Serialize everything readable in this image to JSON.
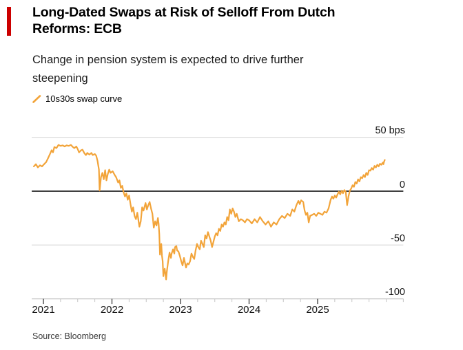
{
  "header": {
    "title": "Long-Dated Swaps at Risk of Selloff From Dutch Reforms: ECB",
    "subtitle": "Change in pension system is expected to drive further steepening"
  },
  "legend": {
    "items": [
      {
        "label": "10s30s swap curve",
        "marker": "diagonal-line-swatch",
        "color": "#F2A43A"
      }
    ]
  },
  "source": "Source: Bloomberg",
  "colors": {
    "accent_red": "#cc0000",
    "line_orange": "#F2A43A",
    "grid_gray": "#d0d0d0",
    "zero_line": "#000000",
    "axis_gray": "#c4c4c4",
    "tick_major": "#3a3a3a"
  },
  "chart_data": {
    "type": "line",
    "title": "Long-Dated Swaps at Risk of Selloff From Dutch Reforms: ECB",
    "subtitle": "Change in pension system is expected to drive further steepening",
    "xlabel": "",
    "ylabel": "bps",
    "legend_position": "top-left",
    "grid": "horizontal",
    "xlim": [
      2020.83,
      2026.25
    ],
    "ylim": [
      -100,
      50
    ],
    "x_ticks_major": [
      2021,
      2022,
      2023,
      2024,
      2025
    ],
    "x_tick_labels": [
      "2021",
      "2022",
      "2023",
      "2024",
      "2025"
    ],
    "x_minor_tick_interval": 0.25,
    "y_ticks": [
      50,
      0,
      -50,
      -100
    ],
    "y_tick_labels": [
      "50 bps",
      "0",
      "-50",
      "-100"
    ],
    "series": [
      {
        "name": "10s30s swap curve",
        "color": "#F2A43A",
        "units": "bps",
        "points": [
          [
            2020.86,
            23
          ],
          [
            2020.89,
            25
          ],
          [
            2020.92,
            22
          ],
          [
            2020.95,
            24
          ],
          [
            2020.98,
            23
          ],
          [
            2021.01,
            25
          ],
          [
            2021.04,
            27
          ],
          [
            2021.07,
            31
          ],
          [
            2021.1,
            35
          ],
          [
            2021.12,
            38
          ],
          [
            2021.14,
            36
          ],
          [
            2021.16,
            41
          ],
          [
            2021.19,
            40
          ],
          [
            2021.22,
            43
          ],
          [
            2021.25,
            42
          ],
          [
            2021.28,
            42.5
          ],
          [
            2021.31,
            41.5
          ],
          [
            2021.34,
            42.5
          ],
          [
            2021.37,
            42
          ],
          [
            2021.4,
            43
          ],
          [
            2021.43,
            41
          ],
          [
            2021.45,
            40
          ],
          [
            2021.48,
            41.5
          ],
          [
            2021.5,
            39
          ],
          [
            2021.52,
            36
          ],
          [
            2021.55,
            38
          ],
          [
            2021.57,
            38.5
          ],
          [
            2021.6,
            35
          ],
          [
            2021.62,
            33.5
          ],
          [
            2021.64,
            35.5
          ],
          [
            2021.67,
            34
          ],
          [
            2021.7,
            35.5
          ],
          [
            2021.72,
            33.5
          ],
          [
            2021.75,
            34.5
          ],
          [
            2021.77,
            33
          ],
          [
            2021.79,
            28
          ],
          [
            2021.81,
            20
          ],
          [
            2021.82,
            0.5
          ],
          [
            2021.84,
            13
          ],
          [
            2021.86,
            17
          ],
          [
            2021.88,
            11
          ],
          [
            2021.9,
            19.5
          ],
          [
            2021.92,
            10
          ],
          [
            2021.94,
            16
          ],
          [
            2021.96,
            20
          ],
          [
            2021.98,
            17
          ],
          [
            2022.01,
            18.5
          ],
          [
            2022.04,
            15
          ],
          [
            2022.06,
            13
          ],
          [
            2022.09,
            8
          ],
          [
            2022.11,
            10
          ],
          [
            2022.13,
            3
          ],
          [
            2022.15,
            5
          ],
          [
            2022.17,
            -1
          ],
          [
            2022.19,
            -5
          ],
          [
            2022.21,
            -2
          ],
          [
            2022.23,
            -8
          ],
          [
            2022.25,
            -4
          ],
          [
            2022.27,
            -12
          ],
          [
            2022.29,
            -19
          ],
          [
            2022.31,
            -15
          ],
          [
            2022.33,
            -23
          ],
          [
            2022.35,
            -26
          ],
          [
            2022.37,
            -20
          ],
          [
            2022.4,
            -33
          ],
          [
            2022.42,
            -28
          ],
          [
            2022.44,
            -15
          ],
          [
            2022.46,
            -18
          ],
          [
            2022.49,
            -11
          ],
          [
            2022.51,
            -17
          ],
          [
            2022.53,
            -13
          ],
          [
            2022.55,
            -10
          ],
          [
            2022.57,
            -16
          ],
          [
            2022.59,
            -21
          ],
          [
            2022.61,
            -34
          ],
          [
            2022.63,
            -28
          ],
          [
            2022.65,
            -32
          ],
          [
            2022.67,
            -25
          ],
          [
            2022.68,
            -30
          ],
          [
            2022.69,
            -40
          ],
          [
            2022.7,
            -59
          ],
          [
            2022.71,
            -52
          ],
          [
            2022.72,
            -49
          ],
          [
            2022.73,
            -60
          ],
          [
            2022.74,
            -65
          ],
          [
            2022.75,
            -79
          ],
          [
            2022.76,
            -74
          ],
          [
            2022.77,
            -72
          ],
          [
            2022.78,
            -77
          ],
          [
            2022.79,
            -82
          ],
          [
            2022.8,
            -75
          ],
          [
            2022.82,
            -65
          ],
          [
            2022.84,
            -57
          ],
          [
            2022.86,
            -62
          ],
          [
            2022.87,
            -58
          ],
          [
            2022.89,
            -54
          ],
          [
            2022.91,
            -58
          ],
          [
            2022.92,
            -52
          ],
          [
            2022.94,
            -51
          ],
          [
            2022.95,
            -55
          ],
          [
            2022.97,
            -56
          ],
          [
            2022.99,
            -60
          ],
          [
            2023.01,
            -65
          ],
          [
            2023.03,
            -69
          ],
          [
            2023.05,
            -62
          ],
          [
            2023.08,
            -71
          ],
          [
            2023.1,
            -67
          ],
          [
            2023.12,
            -68
          ],
          [
            2023.14,
            -65
          ],
          [
            2023.16,
            -58
          ],
          [
            2023.18,
            -61
          ],
          [
            2023.2,
            -63
          ],
          [
            2023.22,
            -55
          ],
          [
            2023.24,
            -49
          ],
          [
            2023.26,
            -52
          ],
          [
            2023.28,
            -54
          ],
          [
            2023.3,
            -46
          ],
          [
            2023.32,
            -49
          ],
          [
            2023.34,
            -52
          ],
          [
            2023.36,
            -41
          ],
          [
            2023.38,
            -44
          ],
          [
            2023.4,
            -38
          ],
          [
            2023.42,
            -42
          ],
          [
            2023.44,
            -46
          ],
          [
            2023.46,
            -52
          ],
          [
            2023.48,
            -47
          ],
          [
            2023.5,
            -42
          ],
          [
            2023.52,
            -39
          ],
          [
            2023.54,
            -41
          ],
          [
            2023.56,
            -35
          ],
          [
            2023.58,
            -37
          ],
          [
            2023.6,
            -31
          ],
          [
            2023.62,
            -33
          ],
          [
            2023.64,
            -29
          ],
          [
            2023.66,
            -31
          ],
          [
            2023.68,
            -24
          ],
          [
            2023.7,
            -27
          ],
          [
            2023.72,
            -17
          ],
          [
            2023.74,
            -21
          ],
          [
            2023.76,
            -16
          ],
          [
            2023.78,
            -19
          ],
          [
            2023.8,
            -24
          ],
          [
            2023.82,
            -21
          ],
          [
            2023.85,
            -28
          ],
          [
            2023.88,
            -26
          ],
          [
            2023.91,
            -27
          ],
          [
            2023.94,
            -29
          ],
          [
            2023.97,
            -26
          ],
          [
            2024.0,
            -27
          ],
          [
            2024.04,
            -30
          ],
          [
            2024.08,
            -26
          ],
          [
            2024.12,
            -29
          ],
          [
            2024.16,
            -24
          ],
          [
            2024.2,
            -28
          ],
          [
            2024.24,
            -31
          ],
          [
            2024.28,
            -28
          ],
          [
            2024.32,
            -33
          ],
          [
            2024.36,
            -29
          ],
          [
            2024.4,
            -31
          ],
          [
            2024.44,
            -26
          ],
          [
            2024.48,
            -23
          ],
          [
            2024.52,
            -25
          ],
          [
            2024.56,
            -21
          ],
          [
            2024.6,
            -23
          ],
          [
            2024.63,
            -17
          ],
          [
            2024.66,
            -19
          ],
          [
            2024.69,
            -13
          ],
          [
            2024.72,
            -9
          ],
          [
            2024.74,
            -12
          ],
          [
            2024.76,
            -8.5
          ],
          [
            2024.79,
            -10
          ],
          [
            2024.81,
            -18
          ],
          [
            2024.83,
            -22
          ],
          [
            2024.85,
            -20
          ],
          [
            2024.87,
            -29
          ],
          [
            2024.89,
            -23
          ],
          [
            2024.92,
            -22
          ],
          [
            2024.95,
            -21
          ],
          [
            2024.98,
            -23
          ],
          [
            2025.01,
            -20
          ],
          [
            2025.04,
            -21
          ],
          [
            2025.07,
            -22
          ],
          [
            2025.1,
            -19
          ],
          [
            2025.13,
            -20
          ],
          [
            2025.16,
            -16
          ],
          [
            2025.19,
            -8
          ],
          [
            2025.21,
            -5
          ],
          [
            2025.23,
            -7
          ],
          [
            2025.25,
            -4
          ],
          [
            2025.27,
            -6
          ],
          [
            2025.29,
            -3
          ],
          [
            2025.31,
            -0.5
          ],
          [
            2025.33,
            -3
          ],
          [
            2025.35,
            0.5
          ],
          [
            2025.37,
            -2
          ],
          [
            2025.39,
            1
          ],
          [
            2025.41,
            -0.5
          ],
          [
            2025.43,
            -13
          ],
          [
            2025.45,
            -5
          ],
          [
            2025.47,
            0.5
          ],
          [
            2025.49,
            2.5
          ],
          [
            2025.51,
            5.5
          ],
          [
            2025.53,
            4
          ],
          [
            2025.55,
            8.5
          ],
          [
            2025.57,
            7
          ],
          [
            2025.59,
            11
          ],
          [
            2025.61,
            9
          ],
          [
            2025.63,
            13
          ],
          [
            2025.65,
            12
          ],
          [
            2025.67,
            15
          ],
          [
            2025.69,
            13
          ],
          [
            2025.71,
            17
          ],
          [
            2025.73,
            15
          ],
          [
            2025.75,
            19.5
          ],
          [
            2025.77,
            19
          ],
          [
            2025.79,
            21.5
          ],
          [
            2025.81,
            20
          ],
          [
            2025.83,
            23.5
          ],
          [
            2025.85,
            22
          ],
          [
            2025.87,
            24.5
          ],
          [
            2025.89,
            23
          ],
          [
            2025.91,
            25.5
          ],
          [
            2025.93,
            24.5
          ],
          [
            2025.95,
            26.5
          ],
          [
            2025.96,
            25
          ],
          [
            2025.97,
            27.5
          ],
          [
            2025.98,
            29
          ]
        ]
      }
    ]
  }
}
